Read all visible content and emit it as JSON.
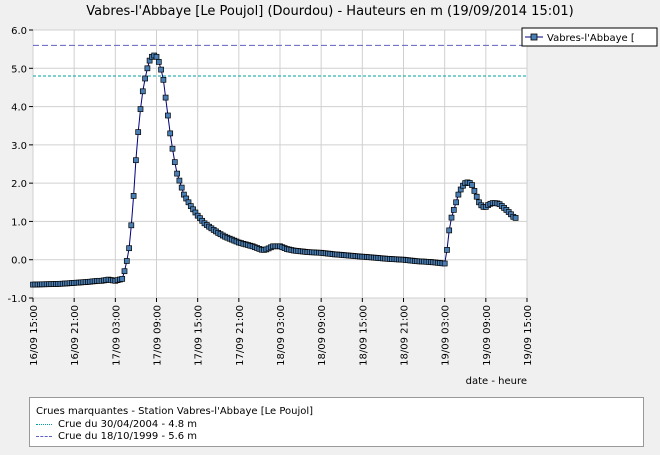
{
  "chart_data": {
    "type": "line",
    "title": "Vabres-l'Abbaye [Le Poujol] (Dourdou) - Hauteurs en m (19/09/2014 15:01)",
    "xlabel": "date - heure",
    "ylabel": "",
    "ylim": [
      -1.0,
      6.0
    ],
    "y_ticks": [
      "-1.0",
      "0.0",
      "1.0",
      "2.0",
      "3.0",
      "4.0",
      "5.0",
      "6.0"
    ],
    "x_range_hours": [
      0,
      72
    ],
    "x_ticks": [
      {
        "hours": 0,
        "label": "16/09 15:00"
      },
      {
        "hours": 6,
        "label": "16/09 21:00"
      },
      {
        "hours": 12,
        "label": "17/09 03:00"
      },
      {
        "hours": 18,
        "label": "17/09 09:00"
      },
      {
        "hours": 24,
        "label": "17/09 15:00"
      },
      {
        "hours": 30,
        "label": "17/09 21:00"
      },
      {
        "hours": 36,
        "label": "18/09 03:00"
      },
      {
        "hours": 42,
        "label": "18/09 09:00"
      },
      {
        "hours": 48,
        "label": "18/09 15:00"
      },
      {
        "hours": 54,
        "label": "18/09 21:00"
      },
      {
        "hours": 60,
        "label": "19/09 03:00"
      },
      {
        "hours": 66,
        "label": "19/09 09:00"
      },
      {
        "hours": 72,
        "label": "19/09 15:00"
      }
    ],
    "grid": true,
    "legend_position": "top-right",
    "series": [
      {
        "name": "Vabres-l'Abbaye [",
        "color": "#000080",
        "marker_color": "#4a7fb5",
        "keypoints": [
          [
            0.0,
            -0.65
          ],
          [
            4.0,
            -0.63
          ],
          [
            8.0,
            -0.58
          ],
          [
            9.5,
            -0.55
          ],
          [
            10.0,
            -0.55
          ],
          [
            11.0,
            -0.52
          ],
          [
            12.0,
            -0.55
          ],
          [
            13.0,
            -0.5
          ],
          [
            13.5,
            -0.2
          ],
          [
            14.0,
            0.3
          ],
          [
            14.5,
            1.2
          ],
          [
            15.0,
            2.6
          ],
          [
            15.5,
            3.7
          ],
          [
            16.0,
            4.4
          ],
          [
            16.5,
            4.9
          ],
          [
            17.0,
            5.2
          ],
          [
            17.5,
            5.35
          ],
          [
            18.0,
            5.3
          ],
          [
            18.5,
            5.1
          ],
          [
            19.0,
            4.7
          ],
          [
            19.5,
            4.0
          ],
          [
            20.0,
            3.3
          ],
          [
            20.5,
            2.7
          ],
          [
            21.0,
            2.25
          ],
          [
            22.0,
            1.7
          ],
          [
            23.0,
            1.4
          ],
          [
            24.0,
            1.15
          ],
          [
            25.0,
            0.95
          ],
          [
            26.0,
            0.82
          ],
          [
            27.0,
            0.7
          ],
          [
            28.0,
            0.6
          ],
          [
            30.0,
            0.45
          ],
          [
            32.0,
            0.35
          ],
          [
            33.5,
            0.25
          ],
          [
            34.0,
            0.27
          ],
          [
            35.0,
            0.35
          ],
          [
            36.0,
            0.35
          ],
          [
            37.0,
            0.28
          ],
          [
            38.0,
            0.24
          ],
          [
            40.0,
            0.2
          ],
          [
            42.0,
            0.18
          ],
          [
            44.0,
            0.14
          ],
          [
            46.0,
            0.11
          ],
          [
            48.0,
            0.08
          ],
          [
            50.0,
            0.05
          ],
          [
            52.0,
            0.02
          ],
          [
            54.0,
            0.0
          ],
          [
            56.0,
            -0.04
          ],
          [
            58.0,
            -0.06
          ],
          [
            59.0,
            -0.08
          ],
          [
            60.0,
            -0.1
          ],
          [
            60.3,
            0.2
          ],
          [
            60.6,
            0.7
          ],
          [
            61.0,
            1.1
          ],
          [
            61.5,
            1.4
          ],
          [
            62.0,
            1.7
          ],
          [
            62.5,
            1.9
          ],
          [
            63.0,
            2.0
          ],
          [
            63.5,
            2.03
          ],
          [
            64.0,
            1.95
          ],
          [
            64.5,
            1.72
          ],
          [
            65.0,
            1.5
          ],
          [
            65.5,
            1.38
          ],
          [
            66.0,
            1.38
          ],
          [
            66.5,
            1.45
          ],
          [
            67.0,
            1.48
          ],
          [
            67.5,
            1.48
          ],
          [
            68.0,
            1.45
          ],
          [
            68.5,
            1.38
          ],
          [
            69.0,
            1.3
          ],
          [
            69.5,
            1.22
          ],
          [
            70.0,
            1.12
          ],
          [
            70.5,
            1.08
          ]
        ]
      }
    ],
    "thresholds": [
      {
        "value": 4.8,
        "color": "#00a0a0"
      },
      {
        "value": 5.6,
        "color": "#6060c0"
      }
    ]
  },
  "threshold_legend": {
    "title": "Crues marquantes - Station Vabres-l'Abbaye [Le Poujol]",
    "items": [
      {
        "label": "Crue du 30/04/2004 - 4.8 m",
        "color": "#00a0a0"
      },
      {
        "label": "Crue du 18/10/1999 - 5.6 m",
        "color": "#6060c0"
      }
    ]
  }
}
